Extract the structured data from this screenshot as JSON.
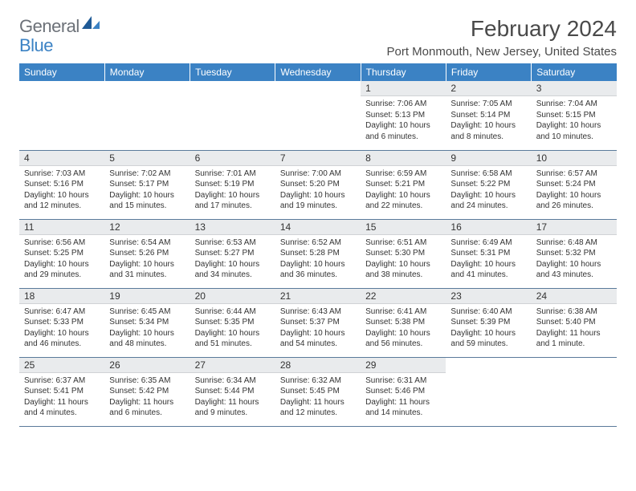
{
  "logo": {
    "text1": "General",
    "text2": "Blue"
  },
  "title": "February 2024",
  "location": "Port Monmouth, New Jersey, United States",
  "colors": {
    "header_bg": "#3b82c4",
    "day_bg": "#e9ebed",
    "text": "#333333",
    "logo_gray": "#6c7178",
    "logo_blue": "#3b82c4"
  },
  "weekdays": [
    "Sunday",
    "Monday",
    "Tuesday",
    "Wednesday",
    "Thursday",
    "Friday",
    "Saturday"
  ],
  "weeks": [
    [
      {
        "empty": true
      },
      {
        "empty": true
      },
      {
        "empty": true
      },
      {
        "empty": true
      },
      {
        "num": "1",
        "sunrise": "Sunrise: 7:06 AM",
        "sunset": "Sunset: 5:13 PM",
        "daylight": "Daylight: 10 hours and 6 minutes."
      },
      {
        "num": "2",
        "sunrise": "Sunrise: 7:05 AM",
        "sunset": "Sunset: 5:14 PM",
        "daylight": "Daylight: 10 hours and 8 minutes."
      },
      {
        "num": "3",
        "sunrise": "Sunrise: 7:04 AM",
        "sunset": "Sunset: 5:15 PM",
        "daylight": "Daylight: 10 hours and 10 minutes."
      }
    ],
    [
      {
        "num": "4",
        "sunrise": "Sunrise: 7:03 AM",
        "sunset": "Sunset: 5:16 PM",
        "daylight": "Daylight: 10 hours and 12 minutes."
      },
      {
        "num": "5",
        "sunrise": "Sunrise: 7:02 AM",
        "sunset": "Sunset: 5:17 PM",
        "daylight": "Daylight: 10 hours and 15 minutes."
      },
      {
        "num": "6",
        "sunrise": "Sunrise: 7:01 AM",
        "sunset": "Sunset: 5:19 PM",
        "daylight": "Daylight: 10 hours and 17 minutes."
      },
      {
        "num": "7",
        "sunrise": "Sunrise: 7:00 AM",
        "sunset": "Sunset: 5:20 PM",
        "daylight": "Daylight: 10 hours and 19 minutes."
      },
      {
        "num": "8",
        "sunrise": "Sunrise: 6:59 AM",
        "sunset": "Sunset: 5:21 PM",
        "daylight": "Daylight: 10 hours and 22 minutes."
      },
      {
        "num": "9",
        "sunrise": "Sunrise: 6:58 AM",
        "sunset": "Sunset: 5:22 PM",
        "daylight": "Daylight: 10 hours and 24 minutes."
      },
      {
        "num": "10",
        "sunrise": "Sunrise: 6:57 AM",
        "sunset": "Sunset: 5:24 PM",
        "daylight": "Daylight: 10 hours and 26 minutes."
      }
    ],
    [
      {
        "num": "11",
        "sunrise": "Sunrise: 6:56 AM",
        "sunset": "Sunset: 5:25 PM",
        "daylight": "Daylight: 10 hours and 29 minutes."
      },
      {
        "num": "12",
        "sunrise": "Sunrise: 6:54 AM",
        "sunset": "Sunset: 5:26 PM",
        "daylight": "Daylight: 10 hours and 31 minutes."
      },
      {
        "num": "13",
        "sunrise": "Sunrise: 6:53 AM",
        "sunset": "Sunset: 5:27 PM",
        "daylight": "Daylight: 10 hours and 34 minutes."
      },
      {
        "num": "14",
        "sunrise": "Sunrise: 6:52 AM",
        "sunset": "Sunset: 5:28 PM",
        "daylight": "Daylight: 10 hours and 36 minutes."
      },
      {
        "num": "15",
        "sunrise": "Sunrise: 6:51 AM",
        "sunset": "Sunset: 5:30 PM",
        "daylight": "Daylight: 10 hours and 38 minutes."
      },
      {
        "num": "16",
        "sunrise": "Sunrise: 6:49 AM",
        "sunset": "Sunset: 5:31 PM",
        "daylight": "Daylight: 10 hours and 41 minutes."
      },
      {
        "num": "17",
        "sunrise": "Sunrise: 6:48 AM",
        "sunset": "Sunset: 5:32 PM",
        "daylight": "Daylight: 10 hours and 43 minutes."
      }
    ],
    [
      {
        "num": "18",
        "sunrise": "Sunrise: 6:47 AM",
        "sunset": "Sunset: 5:33 PM",
        "daylight": "Daylight: 10 hours and 46 minutes."
      },
      {
        "num": "19",
        "sunrise": "Sunrise: 6:45 AM",
        "sunset": "Sunset: 5:34 PM",
        "daylight": "Daylight: 10 hours and 48 minutes."
      },
      {
        "num": "20",
        "sunrise": "Sunrise: 6:44 AM",
        "sunset": "Sunset: 5:35 PM",
        "daylight": "Daylight: 10 hours and 51 minutes."
      },
      {
        "num": "21",
        "sunrise": "Sunrise: 6:43 AM",
        "sunset": "Sunset: 5:37 PM",
        "daylight": "Daylight: 10 hours and 54 minutes."
      },
      {
        "num": "22",
        "sunrise": "Sunrise: 6:41 AM",
        "sunset": "Sunset: 5:38 PM",
        "daylight": "Daylight: 10 hours and 56 minutes."
      },
      {
        "num": "23",
        "sunrise": "Sunrise: 6:40 AM",
        "sunset": "Sunset: 5:39 PM",
        "daylight": "Daylight: 10 hours and 59 minutes."
      },
      {
        "num": "24",
        "sunrise": "Sunrise: 6:38 AM",
        "sunset": "Sunset: 5:40 PM",
        "daylight": "Daylight: 11 hours and 1 minute."
      }
    ],
    [
      {
        "num": "25",
        "sunrise": "Sunrise: 6:37 AM",
        "sunset": "Sunset: 5:41 PM",
        "daylight": "Daylight: 11 hours and 4 minutes."
      },
      {
        "num": "26",
        "sunrise": "Sunrise: 6:35 AM",
        "sunset": "Sunset: 5:42 PM",
        "daylight": "Daylight: 11 hours and 6 minutes."
      },
      {
        "num": "27",
        "sunrise": "Sunrise: 6:34 AM",
        "sunset": "Sunset: 5:44 PM",
        "daylight": "Daylight: 11 hours and 9 minutes."
      },
      {
        "num": "28",
        "sunrise": "Sunrise: 6:32 AM",
        "sunset": "Sunset: 5:45 PM",
        "daylight": "Daylight: 11 hours and 12 minutes."
      },
      {
        "num": "29",
        "sunrise": "Sunrise: 6:31 AM",
        "sunset": "Sunset: 5:46 PM",
        "daylight": "Daylight: 11 hours and 14 minutes."
      },
      {
        "empty": true
      },
      {
        "empty": true
      }
    ]
  ]
}
